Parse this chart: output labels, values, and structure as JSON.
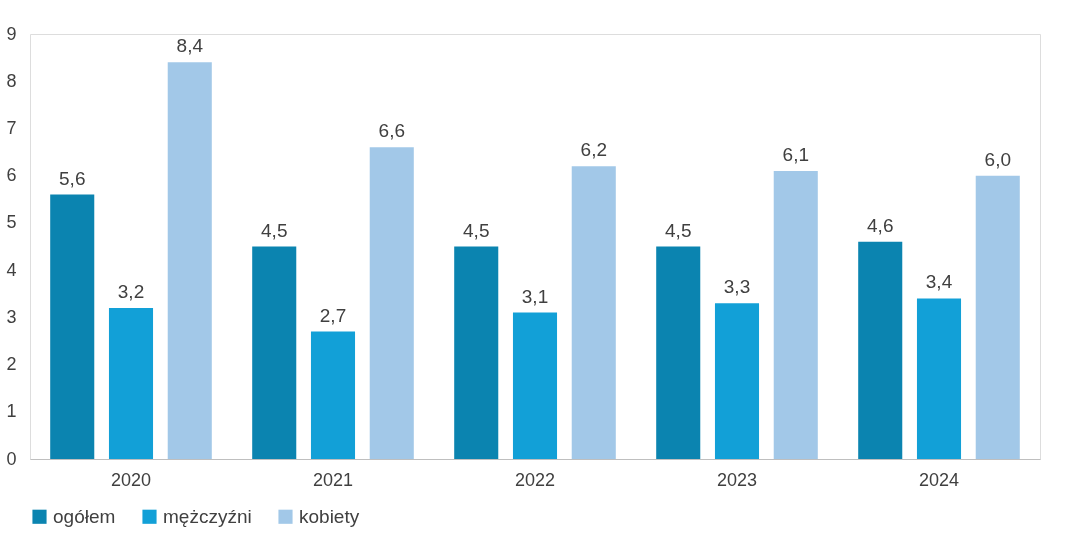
{
  "chart_data": {
    "type": "bar",
    "categories": [
      "2020",
      "2021",
      "2022",
      "2023",
      "2024"
    ],
    "series": [
      {
        "name": "ogółem",
        "color": "#0b84b0",
        "values": [
          5.6,
          4.5,
          4.5,
          4.5,
          4.6
        ],
        "value_labels": [
          "5,6",
          "4,5",
          "4,5",
          "4,5",
          "4,6"
        ]
      },
      {
        "name": "mężczyźni",
        "color": "#12a0d7",
        "values": [
          3.2,
          2.7,
          3.1,
          3.3,
          3.4
        ],
        "value_labels": [
          "3,2",
          "2,7",
          "3,1",
          "3,3",
          "3,4"
        ]
      },
      {
        "name": "kobiety",
        "color": "#a2c8e8",
        "values": [
          8.4,
          6.6,
          6.2,
          6.1,
          6.0
        ],
        "value_labels": [
          "8,4",
          "6,6",
          "6,2",
          "6,1",
          "6,0"
        ]
      }
    ],
    "ylim": [
      0,
      9
    ],
    "yticks": [
      0,
      1,
      2,
      3,
      4,
      5,
      6,
      7,
      8,
      9
    ],
    "grid": false,
    "legend": "bottom"
  }
}
